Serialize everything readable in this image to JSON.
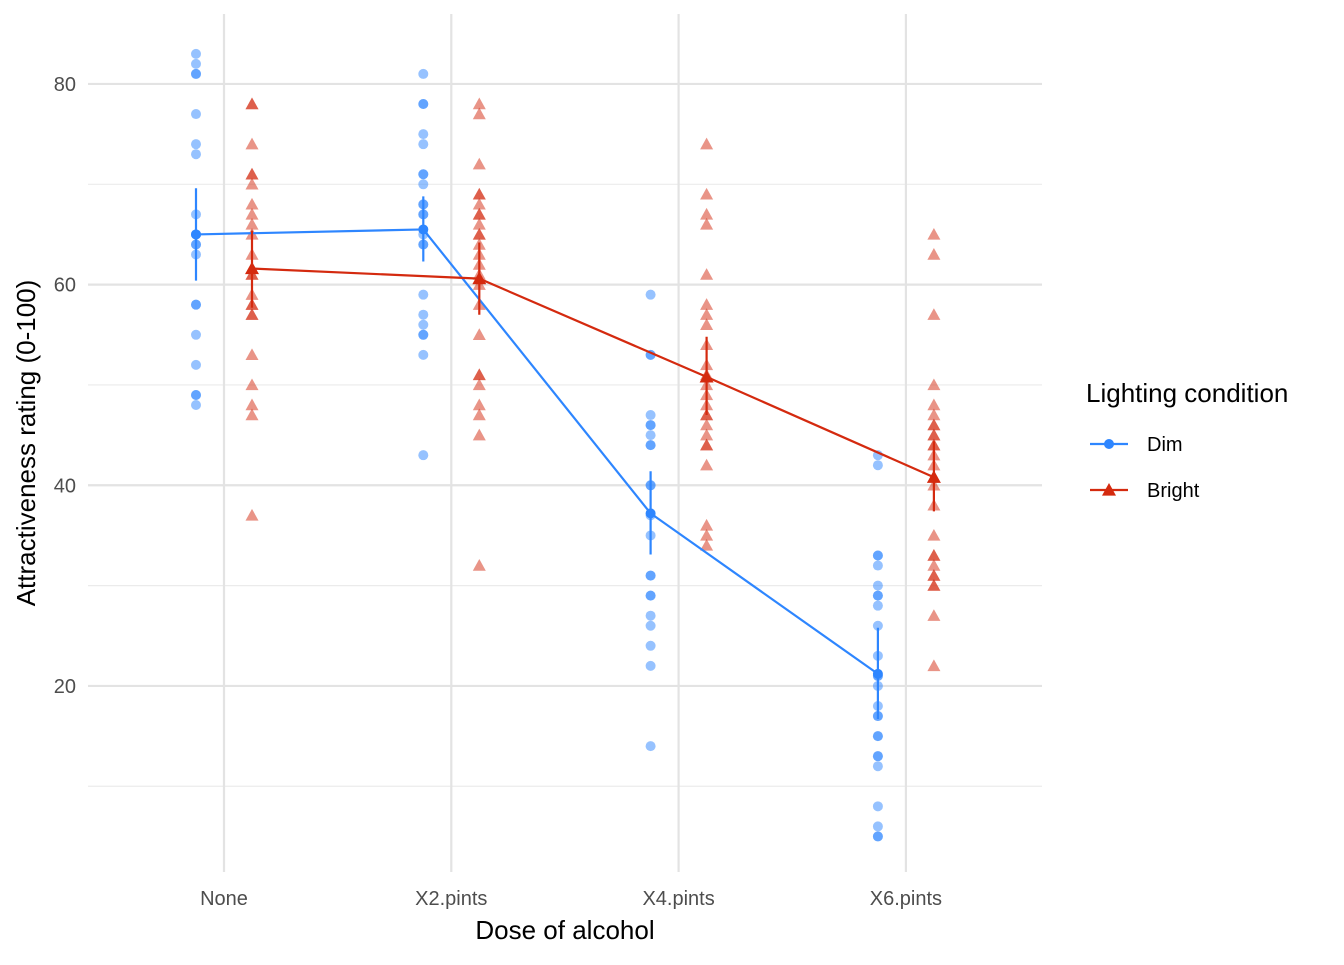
{
  "chart_data": {
    "type": "scatter",
    "title": "",
    "xlabel": "Dose of alcohol",
    "ylabel": "Attractiveness rating (0-100)",
    "categories": [
      "None",
      "X2.pints",
      "X4.pints",
      "X6.pints"
    ],
    "ylim": [
      0,
      88
    ],
    "yticks": [
      20,
      40,
      60,
      80
    ],
    "grid": true,
    "legend": {
      "title": "Lighting condition",
      "placement": "right"
    },
    "series": [
      {
        "name": "Dim",
        "color": "#2E86FF",
        "marker": "circle",
        "points": [
          [
            83,
            82,
            81,
            81,
            77,
            74,
            73,
            67,
            65,
            65,
            64,
            64,
            63,
            58,
            58,
            55,
            52,
            49,
            49,
            48
          ],
          [
            81,
            78,
            78,
            75,
            74,
            71,
            71,
            70,
            68,
            68,
            67,
            67,
            65,
            64,
            64,
            59,
            57,
            56,
            55,
            55,
            53,
            43
          ],
          [
            59,
            53,
            53,
            47,
            46,
            46,
            45,
            44,
            44,
            40,
            40,
            37,
            35,
            31,
            31,
            29,
            29,
            27,
            26,
            24,
            22,
            14
          ],
          [
            43,
            42,
            33,
            33,
            32,
            30,
            29,
            29,
            28,
            26,
            23,
            21,
            21,
            20,
            18,
            17,
            17,
            15,
            15,
            13,
            13,
            12,
            8,
            6,
            5,
            5
          ]
        ],
        "mean": [
          65.0,
          65.5,
          37.2,
          21.2
        ],
        "ci_low": [
          60.4,
          62.3,
          33.1,
          16.7
        ],
        "ci_high": [
          69.6,
          68.8,
          41.4,
          25.8
        ]
      },
      {
        "name": "Bright",
        "color": "#D42A0F",
        "marker": "triangle",
        "points": [
          [
            78,
            78,
            74,
            71,
            71,
            70,
            68,
            67,
            66,
            65,
            63,
            61,
            61,
            59,
            58,
            58,
            57,
            57,
            53,
            50,
            48,
            47,
            37
          ],
          [
            78,
            77,
            72,
            69,
            69,
            68,
            67,
            67,
            66,
            65,
            65,
            64,
            63,
            62,
            61,
            60,
            58,
            55,
            51,
            51,
            50,
            48,
            47,
            45,
            32
          ],
          [
            74,
            69,
            67,
            66,
            61,
            58,
            57,
            56,
            54,
            52,
            51,
            50,
            49,
            48,
            47,
            47,
            46,
            45,
            44,
            44,
            42,
            36,
            35,
            34
          ],
          [
            65,
            63,
            57,
            50,
            48,
            47,
            46,
            46,
            45,
            45,
            44,
            44,
            43,
            42,
            40,
            38,
            35,
            33,
            33,
            32,
            31,
            31,
            30,
            30,
            27,
            22
          ]
        ],
        "mean": [
          61.6,
          60.6,
          50.8,
          40.8
        ],
        "ci_low": [
          57.7,
          57.0,
          47.0,
          37.4
        ],
        "ci_high": [
          65.4,
          64.2,
          54.8,
          44.4
        ]
      }
    ]
  }
}
